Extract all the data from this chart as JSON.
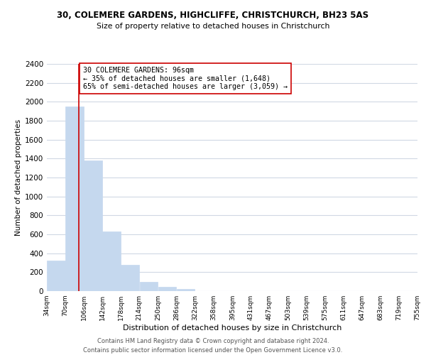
{
  "title1": "30, COLEMERE GARDENS, HIGHCLIFFE, CHRISTCHURCH, BH23 5AS",
  "title2": "Size of property relative to detached houses in Christchurch",
  "xlabel": "Distribution of detached houses by size in Christchurch",
  "ylabel": "Number of detached properties",
  "bar_left_edges": [
    34,
    70,
    106,
    142,
    178,
    214,
    250,
    286,
    322,
    358,
    395,
    431,
    467,
    503,
    539,
    575,
    611,
    647,
    683,
    719
  ],
  "bar_heights": [
    320,
    1950,
    1380,
    630,
    275,
    95,
    45,
    20,
    0,
    0,
    0,
    0,
    0,
    0,
    0,
    0,
    0,
    0,
    0,
    0
  ],
  "bin_width": 36,
  "tick_labels": [
    "34sqm",
    "70sqm",
    "106sqm",
    "142sqm",
    "178sqm",
    "214sqm",
    "250sqm",
    "286sqm",
    "322sqm",
    "358sqm",
    "395sqm",
    "431sqm",
    "467sqm",
    "503sqm",
    "539sqm",
    "575sqm",
    "611sqm",
    "647sqm",
    "683sqm",
    "719sqm",
    "755sqm"
  ],
  "bar_color": "#c5d8ee",
  "bar_edgecolor": "#c5d8ee",
  "property_line_x": 96,
  "property_line_color": "#cc0000",
  "annotation_text": "30 COLEMERE GARDENS: 96sqm\n← 35% of detached houses are smaller (1,648)\n65% of semi-detached houses are larger (3,059) →",
  "annotation_box_color": "#ffffff",
  "annotation_box_edgecolor": "#cc0000",
  "ylim": [
    0,
    2400
  ],
  "yticks": [
    0,
    200,
    400,
    600,
    800,
    1000,
    1200,
    1400,
    1600,
    1800,
    2000,
    2200,
    2400
  ],
  "footer_line1": "Contains HM Land Registry data © Crown copyright and database right 2024.",
  "footer_line2": "Contains public sector information licensed under the Open Government Licence v3.0.",
  "background_color": "#ffffff",
  "grid_color": "#d0d8e4"
}
